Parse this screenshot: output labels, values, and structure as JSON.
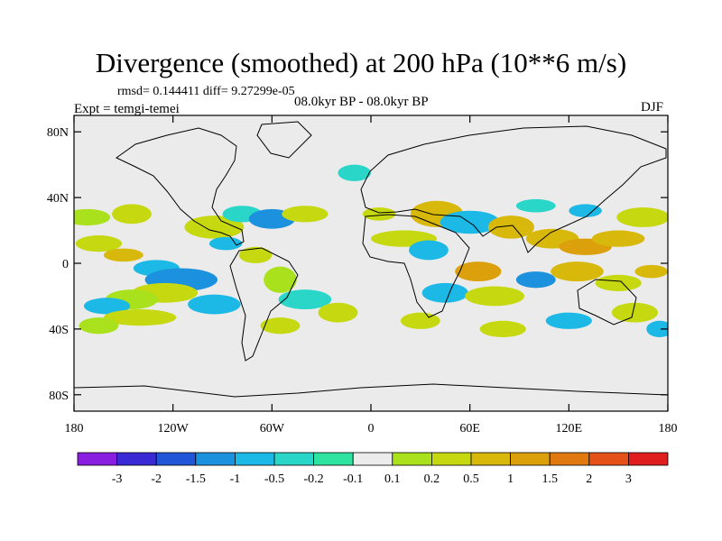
{
  "title": "Divergence (smoothed) at 200 hPa (10**6 m/s)",
  "stats": "rmsd= 0.144411 diff= 9.27299e-05",
  "experiment": "Expt = temgi-temei",
  "period": "08.0kyr BP - 08.0kyr BP",
  "season": "DJF",
  "colors": {
    "background_fill": "#ebebeb",
    "coastline": "#000000",
    "frame": "#000000"
  },
  "axes": {
    "lon_range": [
      -180,
      180
    ],
    "lat_range": [
      -90,
      90
    ],
    "lat_ticks": [
      {
        "value": 80,
        "label": "80N"
      },
      {
        "value": 40,
        "label": "40N"
      },
      {
        "value": 0,
        "label": "0"
      },
      {
        "value": -40,
        "label": "40S"
      },
      {
        "value": -80,
        "label": "80S"
      }
    ],
    "lon_ticks": [
      {
        "value": -180,
        "label": "180"
      },
      {
        "value": -120,
        "label": "120W"
      },
      {
        "value": -60,
        "label": "60W"
      },
      {
        "value": 0,
        "label": "0"
      },
      {
        "value": 60,
        "label": "60E"
      },
      {
        "value": 120,
        "label": "120E"
      },
      {
        "value": 180,
        "label": "180"
      }
    ]
  },
  "colorbar": {
    "colors": [
      "#8a1ee0",
      "#3a2ad6",
      "#2156d8",
      "#1c92de",
      "#1cb8e6",
      "#29d6c8",
      "#2ee3a0",
      "#ececec",
      "#a9e21c",
      "#c6d80f",
      "#d8b80a",
      "#dca00c",
      "#e07a10",
      "#e4521a",
      "#e01e1e"
    ],
    "labels": [
      "-3",
      "-2",
      "-1.5",
      "-1",
      "-0.5",
      "-0.2",
      "-0.1",
      "0.1",
      "0.2",
      "0.5",
      "1",
      "1.5",
      "2",
      "3"
    ]
  },
  "blobs": [
    {
      "lon": -172,
      "lat": 28,
      "rx": 14,
      "ry": 5,
      "c": 8
    },
    {
      "lon": -145,
      "lat": 30,
      "rx": 12,
      "ry": 6,
      "c": 9
    },
    {
      "lon": -165,
      "lat": 12,
      "rx": 14,
      "ry": 5,
      "c": 9
    },
    {
      "lon": -150,
      "lat": 5,
      "rx": 12,
      "ry": 4,
      "c": 10
    },
    {
      "lon": -130,
      "lat": -3,
      "rx": 14,
      "ry": 5,
      "c": 4
    },
    {
      "lon": -115,
      "lat": -10,
      "rx": 22,
      "ry": 7,
      "c": 3
    },
    {
      "lon": -125,
      "lat": -18,
      "rx": 20,
      "ry": 6,
      "c": 9
    },
    {
      "lon": -145,
      "lat": -22,
      "rx": 16,
      "ry": 6,
      "c": 8
    },
    {
      "lon": -160,
      "lat": -26,
      "rx": 14,
      "ry": 5,
      "c": 4
    },
    {
      "lon": -140,
      "lat": -33,
      "rx": 22,
      "ry": 5,
      "c": 9
    },
    {
      "lon": -165,
      "lat": -38,
      "rx": 12,
      "ry": 5,
      "c": 8
    },
    {
      "lon": -95,
      "lat": 22,
      "rx": 18,
      "ry": 7,
      "c": 9
    },
    {
      "lon": -78,
      "lat": 30,
      "rx": 12,
      "ry": 5,
      "c": 5
    },
    {
      "lon": -60,
      "lat": 27,
      "rx": 14,
      "ry": 6,
      "c": 3
    },
    {
      "lon": -40,
      "lat": 30,
      "rx": 14,
      "ry": 5,
      "c": 9
    },
    {
      "lon": -88,
      "lat": 12,
      "rx": 10,
      "ry": 4,
      "c": 4
    },
    {
      "lon": -70,
      "lat": 5,
      "rx": 10,
      "ry": 5,
      "c": 9
    },
    {
      "lon": -95,
      "lat": -25,
      "rx": 16,
      "ry": 6,
      "c": 4
    },
    {
      "lon": -55,
      "lat": -10,
      "rx": 10,
      "ry": 8,
      "c": 8
    },
    {
      "lon": -40,
      "lat": -22,
      "rx": 16,
      "ry": 6,
      "c": 5
    },
    {
      "lon": -55,
      "lat": -38,
      "rx": 12,
      "ry": 5,
      "c": 9
    },
    {
      "lon": -20,
      "lat": -30,
      "rx": 12,
      "ry": 6,
      "c": 9
    },
    {
      "lon": -10,
      "lat": 55,
      "rx": 10,
      "ry": 5,
      "c": 5
    },
    {
      "lon": 5,
      "lat": 30,
      "rx": 10,
      "ry": 4,
      "c": 9
    },
    {
      "lon": 20,
      "lat": 15,
      "rx": 20,
      "ry": 5,
      "c": 9
    },
    {
      "lon": 35,
      "lat": 8,
      "rx": 12,
      "ry": 6,
      "c": 4
    },
    {
      "lon": 40,
      "lat": 30,
      "rx": 16,
      "ry": 8,
      "c": 10
    },
    {
      "lon": 60,
      "lat": 25,
      "rx": 18,
      "ry": 7,
      "c": 4
    },
    {
      "lon": 85,
      "lat": 22,
      "rx": 14,
      "ry": 7,
      "c": 10
    },
    {
      "lon": 110,
      "lat": 15,
      "rx": 16,
      "ry": 6,
      "c": 10
    },
    {
      "lon": 130,
      "lat": 10,
      "rx": 16,
      "ry": 5,
      "c": 11
    },
    {
      "lon": 150,
      "lat": 15,
      "rx": 16,
      "ry": 5,
      "c": 10
    },
    {
      "lon": 165,
      "lat": 28,
      "rx": 16,
      "ry": 6,
      "c": 9
    },
    {
      "lon": 100,
      "lat": 35,
      "rx": 12,
      "ry": 4,
      "c": 5
    },
    {
      "lon": 130,
      "lat": 32,
      "rx": 10,
      "ry": 4,
      "c": 4
    },
    {
      "lon": 65,
      "lat": -5,
      "rx": 14,
      "ry": 6,
      "c": 11
    },
    {
      "lon": 45,
      "lat": -18,
      "rx": 14,
      "ry": 6,
      "c": 4
    },
    {
      "lon": 75,
      "lat": -20,
      "rx": 18,
      "ry": 6,
      "c": 9
    },
    {
      "lon": 100,
      "lat": -10,
      "rx": 12,
      "ry": 5,
      "c": 3
    },
    {
      "lon": 125,
      "lat": -5,
      "rx": 16,
      "ry": 6,
      "c": 10
    },
    {
      "lon": 150,
      "lat": -12,
      "rx": 14,
      "ry": 5,
      "c": 9
    },
    {
      "lon": 170,
      "lat": -5,
      "rx": 10,
      "ry": 4,
      "c": 10
    },
    {
      "lon": 30,
      "lat": -35,
      "rx": 12,
      "ry": 5,
      "c": 9
    },
    {
      "lon": 80,
      "lat": -40,
      "rx": 14,
      "ry": 5,
      "c": 9
    },
    {
      "lon": 120,
      "lat": -35,
      "rx": 14,
      "ry": 5,
      "c": 4
    },
    {
      "lon": 160,
      "lat": -30,
      "rx": 14,
      "ry": 6,
      "c": 9
    },
    {
      "lon": 175,
      "lat": -40,
      "rx": 8,
      "ry": 5,
      "c": 4
    }
  ]
}
